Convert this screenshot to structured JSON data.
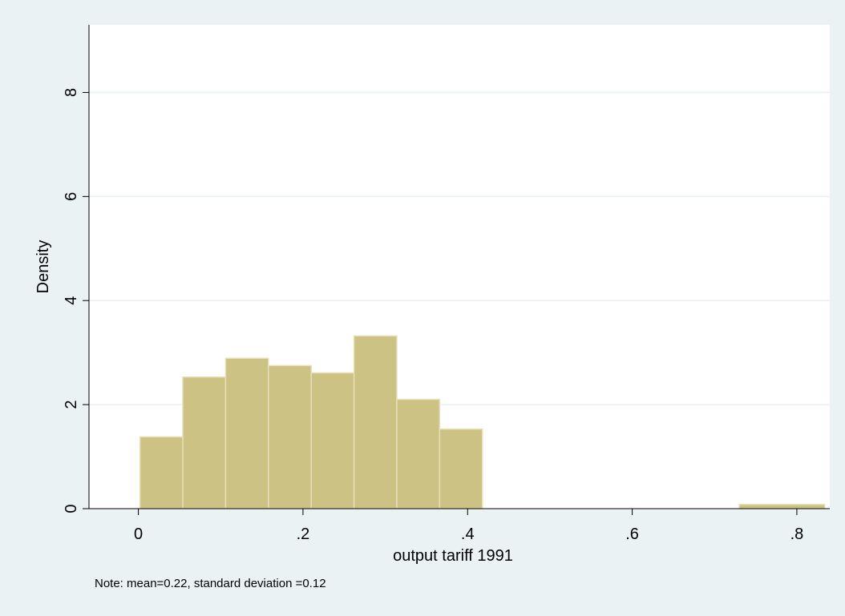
{
  "chart_data": {
    "type": "histogram",
    "title": "",
    "xlabel": "output tariff 1991",
    "ylabel": "Density",
    "xlim": [
      -0.06,
      0.84
    ],
    "ylim": [
      0,
      9.3
    ],
    "x_ticks": [
      0,
      0.2,
      0.4,
      0.6,
      0.8
    ],
    "x_tick_labels": [
      "0",
      ".2",
      ".4",
      ".6",
      ".8"
    ],
    "y_ticks": [
      0,
      2,
      4,
      6,
      8
    ],
    "y_tick_labels": [
      "0",
      "2",
      "4",
      "6",
      "8"
    ],
    "grid": "horizontal",
    "bar_color": "#cbc283",
    "bar_edge_color": "#e6dfb8",
    "bins": [
      {
        "start": 0.002,
        "end": 0.054,
        "density": 1.38
      },
      {
        "start": 0.054,
        "end": 0.106,
        "density": 2.53
      },
      {
        "start": 0.106,
        "end": 0.158,
        "density": 2.89
      },
      {
        "start": 0.158,
        "end": 0.21,
        "density": 2.75
      },
      {
        "start": 0.21,
        "end": 0.262,
        "density": 2.61
      },
      {
        "start": 0.262,
        "end": 0.314,
        "density": 3.32
      },
      {
        "start": 0.314,
        "end": 0.366,
        "density": 2.1
      },
      {
        "start": 0.366,
        "end": 0.418,
        "density": 1.53
      },
      {
        "start": 0.73,
        "end": 0.834,
        "density": 0.08
      }
    ]
  },
  "note": "Note:  mean=0.22, standard deviation =0.12"
}
